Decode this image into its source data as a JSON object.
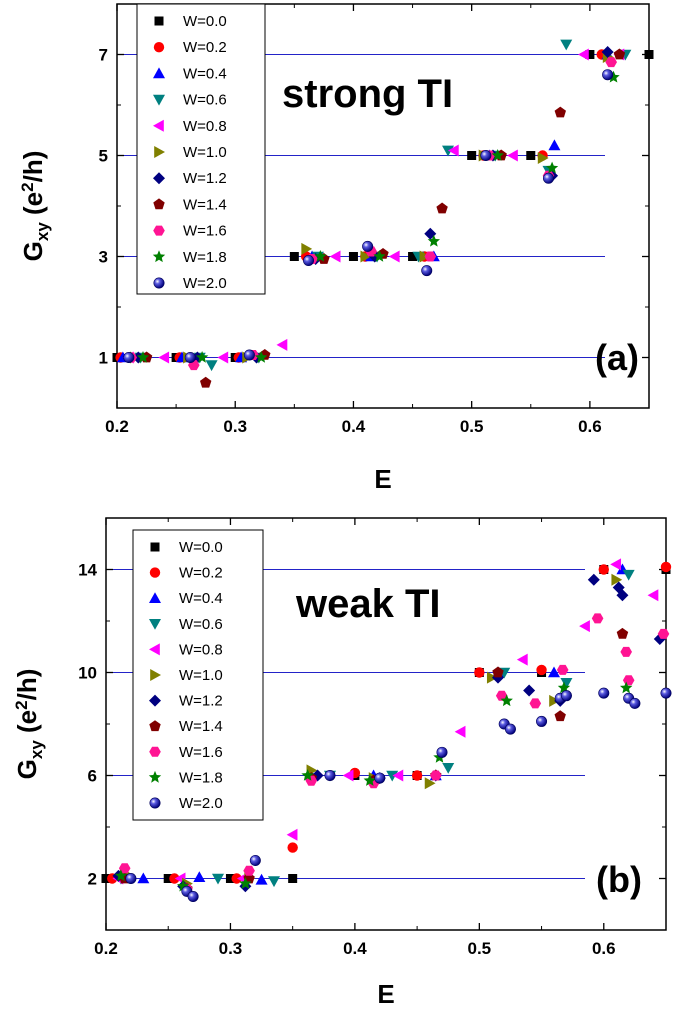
{
  "chart_data": [
    {
      "type": "scatter",
      "title": "strong TI",
      "panel_label": "(a)",
      "xlabel": "E",
      "ylabel": {
        "main": "G",
        "sub": "xy",
        "unit_open": " (e",
        "sup": "2",
        "unit_close": "/h)"
      },
      "xlim": [
        0.2,
        0.65
      ],
      "ylim": [
        0,
        8
      ],
      "xticks": [
        0.2,
        0.3,
        0.4,
        0.5,
        0.6
      ],
      "xtick_labels": [
        "0.2",
        "0.3",
        "0.4",
        "0.5",
        "0.6"
      ],
      "yticks": [
        1,
        3,
        5,
        7
      ],
      "ytick_labels": [
        "1",
        "3",
        "5",
        "7"
      ],
      "grid": "horizontal lines at odd plateaus",
      "legend_position": "top-left",
      "series": [
        {
          "name": "W=0.0",
          "color": "#000000",
          "marker": "square",
          "x": [
            0.2,
            0.25,
            0.3,
            0.35,
            0.4,
            0.45,
            0.5,
            0.55,
            0.6,
            0.65
          ],
          "y": [
            1.0,
            1.0,
            1.0,
            3.0,
            3.0,
            3.0,
            5.0,
            5.0,
            7.0,
            7.0
          ]
        },
        {
          "name": "W=0.2",
          "color": "#ff0000",
          "marker": "circle",
          "x": [
            0.203,
            0.253,
            0.303,
            0.36,
            0.41,
            0.46,
            0.51,
            0.56,
            0.61
          ],
          "y": [
            1.0,
            1.0,
            1.0,
            3.0,
            3.0,
            3.0,
            5.0,
            5.0,
            7.0
          ]
        },
        {
          "name": "W=0.4",
          "color": "#0000ff",
          "marker": "triangle-up",
          "x": [
            0.205,
            0.255,
            0.305,
            0.365,
            0.415,
            0.468,
            0.515,
            0.57,
            0.615
          ],
          "y": [
            1.0,
            1.0,
            1.0,
            3.0,
            3.0,
            3.0,
            5.0,
            5.2,
            7.0
          ]
        },
        {
          "name": "W=0.6",
          "color": "#008080",
          "marker": "triangle-down",
          "x": [
            0.22,
            0.27,
            0.28,
            0.32,
            0.37,
            0.42,
            0.455,
            0.48,
            0.52,
            0.565,
            0.58,
            0.63
          ],
          "y": [
            1.0,
            1.0,
            0.85,
            1.0,
            3.0,
            3.0,
            3.0,
            5.1,
            5.0,
            4.7,
            7.2,
            7.0
          ]
        },
        {
          "name": "W=0.8",
          "color": "#ff00ff",
          "marker": "triangle-left",
          "x": [
            0.21,
            0.24,
            0.29,
            0.34,
            0.385,
            0.435,
            0.485,
            0.535,
            0.595,
            0.625
          ],
          "y": [
            1.0,
            1.0,
            1.0,
            1.25,
            3.0,
            3.0,
            5.1,
            5.0,
            7.0,
            7.0
          ]
        },
        {
          "name": "W=1.0",
          "color": "#808000",
          "marker": "triangle-right",
          "x": [
            0.215,
            0.26,
            0.31,
            0.36,
            0.41,
            0.46,
            0.51,
            0.56,
            0.615
          ],
          "y": [
            1.0,
            1.0,
            1.0,
            3.15,
            3.0,
            3.0,
            5.0,
            4.95,
            6.95
          ]
        },
        {
          "name": "W=1.2",
          "color": "#000080",
          "marker": "diamond",
          "x": [
            0.218,
            0.268,
            0.318,
            0.368,
            0.418,
            0.465,
            0.518,
            0.568,
            0.615
          ],
          "y": [
            1.0,
            1.0,
            1.0,
            2.95,
            3.0,
            3.45,
            5.0,
            4.6,
            7.05
          ]
        },
        {
          "name": "W=1.4",
          "color": "#800000",
          "marker": "pentagon",
          "x": [
            0.225,
            0.275,
            0.325,
            0.375,
            0.425,
            0.475,
            0.525,
            0.575,
            0.625
          ],
          "y": [
            1.0,
            0.5,
            1.05,
            2.95,
            3.05,
            3.95,
            5.0,
            5.85,
            7.0
          ]
        },
        {
          "name": "W=1.6",
          "color": "#ff1493",
          "marker": "hexagon",
          "x": [
            0.212,
            0.265,
            0.315,
            0.365,
            0.415,
            0.465,
            0.515,
            0.565,
            0.618
          ],
          "y": [
            1.0,
            0.85,
            1.05,
            2.95,
            3.1,
            3.0,
            5.0,
            4.6,
            6.85
          ]
        },
        {
          "name": "W=1.8",
          "color": "#008000",
          "marker": "star",
          "x": [
            0.222,
            0.272,
            0.322,
            0.372,
            0.422,
            0.468,
            0.522,
            0.568,
            0.62
          ],
          "y": [
            1.0,
            1.0,
            1.0,
            3.0,
            3.0,
            3.3,
            5.0,
            4.75,
            6.55
          ]
        },
        {
          "name": "W=2.0",
          "color": "#0000a0",
          "marker": "sphere",
          "x": [
            0.21,
            0.262,
            0.312,
            0.362,
            0.412,
            0.462,
            0.512,
            0.565,
            0.615
          ],
          "y": [
            1.0,
            1.0,
            1.05,
            2.92,
            3.2,
            2.72,
            5.0,
            4.55,
            6.6
          ]
        }
      ]
    },
    {
      "type": "scatter",
      "title": "weak TI",
      "panel_label": "(b)",
      "xlabel": "E",
      "ylabel": {
        "main": "G",
        "sub": "xy",
        "unit_open": " (e",
        "sup": "2",
        "unit_close": "/h)"
      },
      "xlim": [
        0.2,
        0.65
      ],
      "ylim": [
        0,
        16
      ],
      "xticks": [
        0.2,
        0.3,
        0.4,
        0.5,
        0.6
      ],
      "xtick_labels": [
        "0.2",
        "0.3",
        "0.4",
        "0.5",
        "0.6"
      ],
      "yticks": [
        2,
        6,
        10,
        14
      ],
      "ytick_labels": [
        "2",
        "6",
        "10",
        "14"
      ],
      "grid": "horizontal lines at even plateaus",
      "legend_position": "top-left",
      "series": [
        {
          "name": "W=0.0",
          "color": "#000000",
          "marker": "square",
          "x": [
            0.2,
            0.25,
            0.3,
            0.35,
            0.4,
            0.45,
            0.5,
            0.55,
            0.6,
            0.65
          ],
          "y": [
            2.0,
            2.0,
            2.0,
            2.0,
            6.0,
            6.0,
            10.0,
            10.0,
            14.0,
            14.0
          ]
        },
        {
          "name": "W=0.2",
          "color": "#ff0000",
          "marker": "circle",
          "x": [
            0.205,
            0.255,
            0.305,
            0.35,
            0.4,
            0.45,
            0.5,
            0.55,
            0.6,
            0.65
          ],
          "y": [
            2.0,
            2.0,
            2.0,
            3.2,
            6.1,
            6.0,
            10.0,
            10.1,
            14.0,
            14.1
          ]
        },
        {
          "name": "W=0.4",
          "color": "#0000ff",
          "marker": "triangle-up",
          "x": [
            0.23,
            0.275,
            0.325,
            0.365,
            0.415,
            0.465,
            0.515,
            0.56,
            0.615
          ],
          "y": [
            2.0,
            2.05,
            1.95,
            6.0,
            6.0,
            6.0,
            10.0,
            10.0,
            14.0
          ]
        },
        {
          "name": "W=0.6",
          "color": "#008080",
          "marker": "triangle-down",
          "x": [
            0.212,
            0.29,
            0.335,
            0.38,
            0.43,
            0.475,
            0.52,
            0.57,
            0.62
          ],
          "y": [
            2.0,
            2.0,
            1.9,
            6.0,
            6.0,
            6.3,
            10.0,
            9.6,
            13.8
          ]
        },
        {
          "name": "W=0.8",
          "color": "#ff00ff",
          "marker": "triangle-left",
          "x": [
            0.21,
            0.26,
            0.31,
            0.35,
            0.395,
            0.435,
            0.485,
            0.535,
            0.585,
            0.61,
            0.64
          ],
          "y": [
            2.0,
            2.0,
            2.0,
            3.7,
            6.0,
            6.0,
            7.7,
            10.5,
            11.8,
            14.2,
            13.0
          ]
        },
        {
          "name": "W=1.0",
          "color": "#808000",
          "marker": "triangle-right",
          "x": [
            0.215,
            0.265,
            0.315,
            0.365,
            0.415,
            0.46,
            0.51,
            0.56,
            0.61
          ],
          "y": [
            2.2,
            1.8,
            2.0,
            6.2,
            5.9,
            5.7,
            9.8,
            8.9,
            13.6
          ]
        },
        {
          "name": "W=1.2",
          "color": "#000080",
          "marker": "diamond",
          "x": [
            0.21,
            0.262,
            0.312,
            0.37,
            0.42,
            0.465,
            0.515,
            0.54,
            0.565,
            0.592,
            0.612,
            0.615,
            0.645
          ],
          "y": [
            2.1,
            1.7,
            1.7,
            6.0,
            5.9,
            6.0,
            9.8,
            9.3,
            8.9,
            13.6,
            13.3,
            13.0,
            11.3
          ]
        },
        {
          "name": "W=1.4",
          "color": "#800000",
          "marker": "pentagon",
          "x": [
            0.215,
            0.265,
            0.315,
            0.365,
            0.415,
            0.465,
            0.515,
            0.565,
            0.615
          ],
          "y": [
            2.0,
            1.6,
            2.0,
            5.9,
            5.8,
            6.0,
            10.0,
            8.3,
            11.5
          ]
        },
        {
          "name": "W=1.6",
          "color": "#ff1493",
          "marker": "hexagon",
          "x": [
            0.215,
            0.265,
            0.315,
            0.365,
            0.415,
            0.465,
            0.518,
            0.545,
            0.567,
            0.595,
            0.618,
            0.62,
            0.648
          ],
          "y": [
            2.4,
            1.6,
            2.3,
            5.8,
            5.7,
            6.0,
            9.1,
            8.8,
            10.1,
            12.1,
            10.8,
            9.7,
            11.5
          ]
        },
        {
          "name": "W=1.8",
          "color": "#008000",
          "marker": "star",
          "x": [
            0.212,
            0.262,
            0.312,
            0.362,
            0.412,
            0.468,
            0.522,
            0.568,
            0.618
          ],
          "y": [
            2.1,
            1.7,
            1.8,
            6.0,
            5.8,
            6.7,
            8.9,
            9.4,
            9.4
          ]
        },
        {
          "name": "W=2.0",
          "color": "#0000a0",
          "marker": "sphere",
          "x": [
            0.22,
            0.265,
            0.27,
            0.32,
            0.38,
            0.42,
            0.47,
            0.52,
            0.525,
            0.55,
            0.565,
            0.57,
            0.6,
            0.62,
            0.625,
            0.65
          ],
          "y": [
            2.0,
            1.5,
            1.3,
            2.7,
            6.0,
            5.9,
            6.9,
            8.0,
            7.8,
            8.1,
            9.0,
            9.1,
            9.2,
            9.0,
            8.8,
            9.2
          ]
        }
      ]
    }
  ]
}
